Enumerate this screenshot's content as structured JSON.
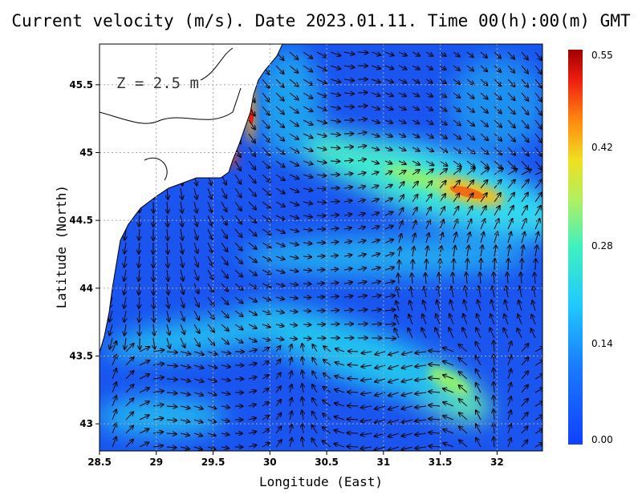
{
  "title": "Current velocity (m/s). Date 2023.01.11. Time 00(h):00(m) GMT",
  "depth_label": "Z = 2.5 m",
  "x_axis": {
    "label": "Longitude (East)",
    "ticks": [
      "28.5",
      "29",
      "29.5",
      "30",
      "30.5",
      "31",
      "31.5",
      "32"
    ],
    "range": [
      28.5,
      32.4
    ]
  },
  "y_axis": {
    "label": "Latitude (North)",
    "ticks": [
      "43",
      "43.5",
      "44",
      "44.5",
      "45",
      "45.5"
    ],
    "range": [
      42.8,
      45.8
    ]
  },
  "colorbar": {
    "labels": [
      "0.55",
      "0.42",
      "0.28",
      "0.14",
      "0.00"
    ],
    "min": 0.0,
    "max": 0.55
  },
  "colors": {
    "low": "#1a4cf0",
    "mid": "#22d0f0",
    "high": "#b00000"
  },
  "grid": "dotted"
}
